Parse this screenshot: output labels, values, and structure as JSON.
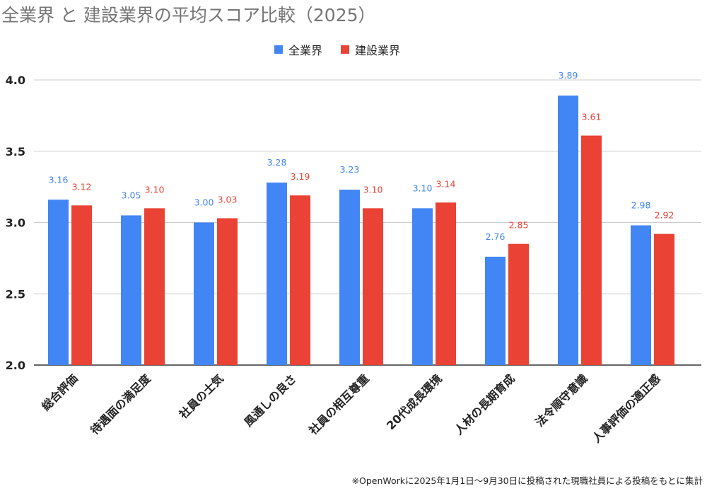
{
  "chart_data": {
    "type": "bar",
    "title": "全業界 と 建設業界の平均スコア比較（2025）",
    "categories": [
      "総合評価",
      "待遇面の満足度",
      "社員の士気",
      "風通しの良さ",
      "社員の相互尊重",
      "20代成長環境",
      "人材の長期育成",
      "法令順守意識",
      "人事評価の適正感"
    ],
    "series": [
      {
        "name": "全業界",
        "color": "#4285f4",
        "values": [
          3.16,
          3.05,
          3.0,
          3.28,
          3.23,
          3.1,
          2.76,
          3.89,
          2.98
        ]
      },
      {
        "name": "建設業界",
        "color": "#ea4335",
        "values": [
          3.12,
          3.1,
          3.03,
          3.19,
          3.1,
          3.14,
          2.85,
          3.61,
          2.92
        ]
      }
    ],
    "ylim": [
      2.0,
      4.0
    ],
    "yticks": [
      "2.0",
      "2.5",
      "3.0",
      "3.5",
      "4.0"
    ],
    "grid": true,
    "legend": "top-center",
    "xlabel": "",
    "ylabel": ""
  },
  "footnote": "※OpenWorkに2025年1月1日～9月30日に投稿された現職社員による投稿をもとに集計"
}
